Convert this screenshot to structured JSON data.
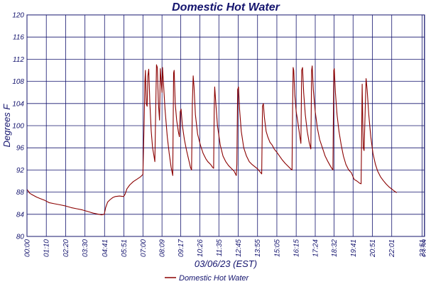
{
  "chart_data": {
    "type": "line",
    "title": "Domestic Hot Water",
    "xlabel": "03/06/23 (EST)",
    "ylabel": "Degrees F",
    "ylim": [
      80,
      120
    ],
    "yticks": [
      80,
      84,
      88,
      92,
      96,
      100,
      104,
      108,
      112,
      116,
      120
    ],
    "xlim": [
      0,
      1440
    ],
    "xticks": [
      {
        "t": 0,
        "label": "00:00"
      },
      {
        "t": 70,
        "label": "01:10"
      },
      {
        "t": 140,
        "label": "02:20"
      },
      {
        "t": 210,
        "label": "03:30"
      },
      {
        "t": 281,
        "label": "04:41"
      },
      {
        "t": 351,
        "label": "05:51"
      },
      {
        "t": 420,
        "label": "07:00"
      },
      {
        "t": 489,
        "label": "08:09"
      },
      {
        "t": 557,
        "label": "09:17"
      },
      {
        "t": 626,
        "label": "10:26"
      },
      {
        "t": 695,
        "label": "11:35"
      },
      {
        "t": 765,
        "label": "12:45"
      },
      {
        "t": 835,
        "label": "13:55"
      },
      {
        "t": 905,
        "label": "15:05"
      },
      {
        "t": 975,
        "label": "16:15"
      },
      {
        "t": 1044,
        "label": "17:24"
      },
      {
        "t": 1112,
        "label": "18:32"
      },
      {
        "t": 1181,
        "label": "19:41"
      },
      {
        "t": 1251,
        "label": "20:51"
      },
      {
        "t": 1321,
        "label": "22:01"
      },
      {
        "t": 1431,
        "label": "23:51"
      },
      {
        "t": 1439,
        "label": "23:59"
      }
    ],
    "grid": true,
    "legend": "bottom-center",
    "series": [
      {
        "name": "Domestic Hot Water",
        "color": "#8b0000",
        "points": [
          [
            0,
            88.5
          ],
          [
            10,
            87.8
          ],
          [
            20,
            87.5
          ],
          [
            35,
            87.1
          ],
          [
            50,
            86.8
          ],
          [
            65,
            86.5
          ],
          [
            80,
            86.1
          ],
          [
            100,
            85.9
          ],
          [
            120,
            85.7
          ],
          [
            140,
            85.5
          ],
          [
            160,
            85.2
          ],
          [
            180,
            85.0
          ],
          [
            200,
            84.8
          ],
          [
            220,
            84.5
          ],
          [
            240,
            84.2
          ],
          [
            260,
            84.0
          ],
          [
            270,
            83.9
          ],
          [
            280,
            84.0
          ],
          [
            285,
            85.2
          ],
          [
            292,
            86.2
          ],
          [
            300,
            86.6
          ],
          [
            310,
            87.0
          ],
          [
            320,
            87.2
          ],
          [
            335,
            87.3
          ],
          [
            350,
            87.2
          ],
          [
            355,
            87.6
          ],
          [
            362,
            88.6
          ],
          [
            372,
            89.3
          ],
          [
            385,
            89.9
          ],
          [
            400,
            90.4
          ],
          [
            412,
            90.8
          ],
          [
            420,
            91.2
          ],
          [
            424,
            100.0
          ],
          [
            427,
            108.0
          ],
          [
            429,
            110.0
          ],
          [
            432,
            104.0
          ],
          [
            435,
            103.5
          ],
          [
            438,
            109.0
          ],
          [
            441,
            110.2
          ],
          [
            445,
            104.0
          ],
          [
            450,
            99.0
          ],
          [
            455,
            96.0
          ],
          [
            460,
            94.5
          ],
          [
            463,
            93.5
          ],
          [
            466,
            102.0
          ],
          [
            469,
            111.0
          ],
          [
            472,
            110.5
          ],
          [
            476,
            104.0
          ],
          [
            480,
            101.0
          ],
          [
            483,
            110.3
          ],
          [
            486,
            108.0
          ],
          [
            489,
            106.0
          ],
          [
            491,
            110.5
          ],
          [
            494,
            108.0
          ],
          [
            500,
            103.0
          ],
          [
            508,
            98.0
          ],
          [
            515,
            95.0
          ],
          [
            522,
            92.5
          ],
          [
            528,
            91.0
          ],
          [
            531,
            109.5
          ],
          [
            533,
            110.0
          ],
          [
            537,
            104.0
          ],
          [
            542,
            101.0
          ],
          [
            548,
            99.0
          ],
          [
            552,
            98.0
          ],
          [
            555,
            102.5
          ],
          [
            558,
            103.0
          ],
          [
            563,
            100.0
          ],
          [
            570,
            97.5
          ],
          [
            578,
            95.5
          ],
          [
            585,
            94.0
          ],
          [
            592,
            92.5
          ],
          [
            596,
            92.0
          ],
          [
            599,
            104.0
          ],
          [
            602,
            109.0
          ],
          [
            605,
            107.0
          ],
          [
            610,
            102.0
          ],
          [
            618,
            98.5
          ],
          [
            628,
            96.5
          ],
          [
            638,
            95.0
          ],
          [
            648,
            94.0
          ],
          [
            655,
            93.5
          ],
          [
            665,
            93.0
          ],
          [
            672,
            92.5
          ],
          [
            676,
            92.3
          ],
          [
            678,
            103.0
          ],
          [
            680,
            107.0
          ],
          [
            684,
            104.0
          ],
          [
            690,
            100.0
          ],
          [
            700,
            96.5
          ],
          [
            710,
            94.5
          ],
          [
            720,
            93.5
          ],
          [
            730,
            92.8
          ],
          [
            740,
            92.3
          ],
          [
            750,
            91.8
          ],
          [
            755,
            91.3
          ],
          [
            758,
            91.0
          ],
          [
            760,
            93.0
          ],
          [
            763,
            106.5
          ],
          [
            766,
            107.0
          ],
          [
            770,
            103.0
          ],
          [
            776,
            99.0
          ],
          [
            785,
            96.0
          ],
          [
            795,
            94.5
          ],
          [
            805,
            93.5
          ],
          [
            815,
            93.0
          ],
          [
            825,
            92.6
          ],
          [
            835,
            92.2
          ],
          [
            845,
            91.6
          ],
          [
            850,
            91.3
          ],
          [
            853,
            103.5
          ],
          [
            856,
            104.0
          ],
          [
            860,
            101.5
          ],
          [
            866,
            99.0
          ],
          [
            872,
            98.0
          ],
          [
            880,
            97.0
          ],
          [
            888,
            96.5
          ],
          [
            895,
            95.8
          ],
          [
            905,
            95.2
          ],
          [
            915,
            94.5
          ],
          [
            925,
            93.8
          ],
          [
            935,
            93.2
          ],
          [
            945,
            92.7
          ],
          [
            955,
            92.2
          ],
          [
            960,
            92.0
          ],
          [
            962,
            103.0
          ],
          [
            964,
            110.5
          ],
          [
            966,
            110.0
          ],
          [
            970,
            105.5
          ],
          [
            975,
            102.5
          ],
          [
            980,
            101.0
          ],
          [
            987,
            98.5
          ],
          [
            992,
            96.8
          ],
          [
            995,
            110.0
          ],
          [
            998,
            110.5
          ],
          [
            1002,
            106.0
          ],
          [
            1008,
            102.0
          ],
          [
            1015,
            99.0
          ],
          [
            1022,
            97.0
          ],
          [
            1028,
            95.8
          ],
          [
            1031,
            110.0
          ],
          [
            1033,
            110.8
          ],
          [
            1037,
            106.5
          ],
          [
            1044,
            102.5
          ],
          [
            1052,
            99.5
          ],
          [
            1060,
            97.5
          ],
          [
            1070,
            96.0
          ],
          [
            1080,
            94.5
          ],
          [
            1090,
            93.5
          ],
          [
            1100,
            92.6
          ],
          [
            1108,
            92.0
          ],
          [
            1111,
            110.0
          ],
          [
            1113,
            110.3
          ],
          [
            1117,
            106.0
          ],
          [
            1123,
            102.0
          ],
          [
            1130,
            99.0
          ],
          [
            1138,
            96.5
          ],
          [
            1146,
            94.5
          ],
          [
            1155,
            93.0
          ],
          [
            1165,
            92.0
          ],
          [
            1175,
            91.5
          ],
          [
            1185,
            90.3
          ],
          [
            1195,
            90.0
          ],
          [
            1205,
            89.6
          ],
          [
            1210,
            89.5
          ],
          [
            1212,
            97.5
          ],
          [
            1214,
            107.5
          ],
          [
            1216,
            101.0
          ],
          [
            1218,
            96.0
          ],
          [
            1221,
            95.5
          ],
          [
            1225,
            103.0
          ],
          [
            1228,
            108.5
          ],
          [
            1232,
            106.5
          ],
          [
            1238,
            102.0
          ],
          [
            1245,
            98.0
          ],
          [
            1253,
            95.0
          ],
          [
            1262,
            93.0
          ],
          [
            1270,
            91.8
          ],
          [
            1280,
            90.8
          ],
          [
            1290,
            90.1
          ],
          [
            1300,
            89.5
          ],
          [
            1310,
            89.0
          ],
          [
            1320,
            88.6
          ],
          [
            1330,
            88.2
          ],
          [
            1339,
            87.9
          ]
        ]
      }
    ]
  }
}
